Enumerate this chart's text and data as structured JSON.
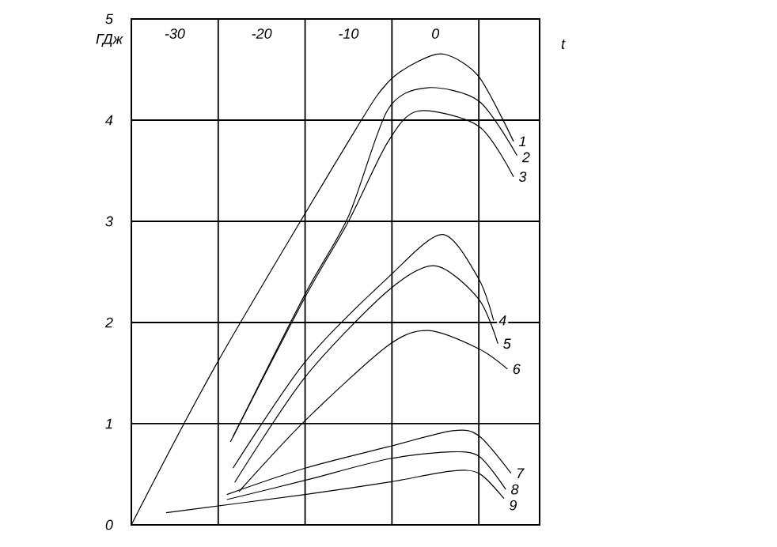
{
  "chart_data": {
    "type": "line",
    "xlabel": "t",
    "ylabel": "ГДж",
    "xlim": [
      -35,
      12
    ],
    "ylim": [
      0,
      5
    ],
    "xticks": [
      -30,
      -20,
      -10,
      0
    ],
    "yticks": [
      0,
      1,
      2,
      3,
      4,
      5
    ],
    "grid": true,
    "marker": "none",
    "line_style": "solid",
    "series": [
      {
        "name": "1",
        "color": "#000000",
        "x": [
          -35,
          -25,
          -9.3,
          -5.5,
          -2,
          1.1,
          5,
          9
        ],
        "values": [
          0,
          1.62,
          3.89,
          4.37,
          4.58,
          4.65,
          4.43,
          3.79
        ]
      },
      {
        "name": "2",
        "color": "#000000",
        "x": [
          -23.3,
          -15,
          -10,
          -5.5,
          -1,
          5,
          9.4
        ],
        "values": [
          0.87,
          2.28,
          3.05,
          4.1,
          4.32,
          4.19,
          3.65
        ]
      },
      {
        "name": "3",
        "color": "#000000",
        "x": [
          -23.6,
          -15,
          -10,
          -5.5,
          -2,
          5,
          9
        ],
        "values": [
          0.82,
          2.25,
          3.0,
          3.78,
          4.09,
          3.94,
          3.44
        ]
      },
      {
        "name": "4",
        "color": "#000000",
        "x": [
          -23.3,
          -15,
          -5.5,
          0.8,
          5,
          6.7
        ],
        "values": [
          0.56,
          1.61,
          2.44,
          2.87,
          2.43,
          2.02
        ]
      },
      {
        "name": "5",
        "color": "#000000",
        "x": [
          -23.1,
          -15,
          -5.5,
          0,
          5,
          7.2
        ],
        "values": [
          0.42,
          1.46,
          2.31,
          2.56,
          2.23,
          1.79
        ]
      },
      {
        "name": "6",
        "color": "#000000",
        "x": [
          -22.6,
          -15,
          -5.5,
          -0.8,
          5,
          8.3
        ],
        "values": [
          0.33,
          1.03,
          1.77,
          1.92,
          1.74,
          1.54
        ]
      },
      {
        "name": "7",
        "color": "#000000",
        "x": [
          -24,
          -15,
          -5.5,
          2,
          5,
          8.7
        ],
        "values": [
          0.3,
          0.56,
          0.77,
          0.93,
          0.88,
          0.51
        ]
      },
      {
        "name": "8",
        "color": "#000000",
        "x": [
          -24,
          -15,
          -5.5,
          1.4,
          5,
          8.1
        ],
        "values": [
          0.25,
          0.44,
          0.65,
          0.72,
          0.68,
          0.35
        ]
      },
      {
        "name": "9",
        "color": "#000000",
        "x": [
          -31,
          -15,
          -5.5,
          1.7,
          5,
          7.9
        ],
        "values": [
          0.12,
          0.3,
          0.42,
          0.53,
          0.51,
          0.26
        ]
      }
    ]
  }
}
